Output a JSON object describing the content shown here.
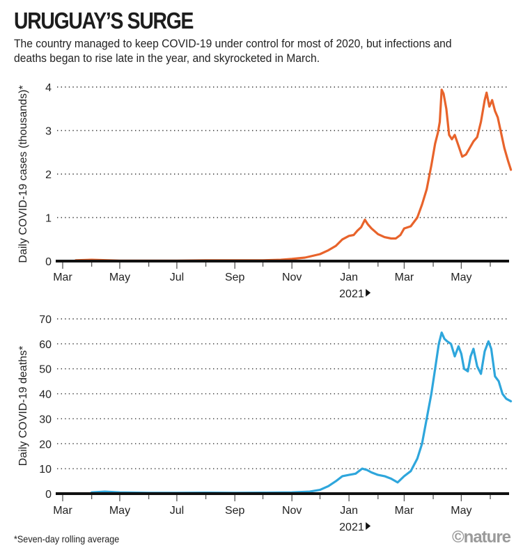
{
  "title": "URUGUAY’S SURGE",
  "subtitle": "The country managed to keep COVID-19 under control for most of 2020, but infections and deaths began to rise late in the year, and skyrocketed in March.",
  "footnote": "*Seven-day rolling average",
  "credit": "©nature",
  "colors": {
    "cases": "#e8632b",
    "deaths": "#2ea6dc",
    "axis": "#111111",
    "grid": "#333333"
  },
  "chart_data": [
    {
      "type": "line",
      "title": "Daily COVID-19 cases",
      "xlabel": "",
      "ylabel": "Daily COVID-19 cases (thousands)*",
      "ylim": [
        0,
        4
      ],
      "yticks": [
        "0",
        "1",
        "2",
        "3",
        "4"
      ],
      "xticks": [
        "Mar",
        "May",
        "Jul",
        "Sep",
        "Nov",
        "Jan",
        "Mar",
        "May"
      ],
      "year_marker": "2021",
      "grid": true,
      "series": [
        {
          "name": "Cases",
          "x": [
            "2020-03-15",
            "2020-04-01",
            "2020-05-01",
            "2020-06-01",
            "2020-07-01",
            "2020-08-01",
            "2020-09-01",
            "2020-10-01",
            "2020-10-20",
            "2020-11-01",
            "2020-11-15",
            "2020-12-01",
            "2020-12-10",
            "2020-12-18",
            "2020-12-25",
            "2021-01-01",
            "2021-01-06",
            "2021-01-10",
            "2021-01-14",
            "2021-01-18",
            "2021-01-21",
            "2021-01-25",
            "2021-02-01",
            "2021-02-08",
            "2021-02-15",
            "2021-02-20",
            "2021-02-25",
            "2021-03-01",
            "2021-03-08",
            "2021-03-15",
            "2021-03-20",
            "2021-03-25",
            "2021-03-30",
            "2021-04-03",
            "2021-04-06",
            "2021-04-08",
            "2021-04-10",
            "2021-04-12",
            "2021-04-15",
            "2021-04-18",
            "2021-04-21",
            "2021-04-24",
            "2021-04-28",
            "2021-05-02",
            "2021-05-06",
            "2021-05-10",
            "2021-05-14",
            "2021-05-18",
            "2021-05-22",
            "2021-05-26",
            "2021-05-28",
            "2021-05-31",
            "2021-06-03",
            "2021-06-06",
            "2021-06-09",
            "2021-06-12",
            "2021-06-16",
            "2021-06-20",
            "2021-06-23"
          ],
          "values": [
            0.02,
            0.03,
            0.01,
            0.01,
            0.01,
            0.02,
            0.02,
            0.02,
            0.03,
            0.05,
            0.08,
            0.16,
            0.25,
            0.35,
            0.5,
            0.58,
            0.6,
            0.7,
            0.78,
            0.95,
            0.85,
            0.75,
            0.62,
            0.55,
            0.52,
            0.52,
            0.6,
            0.75,
            0.8,
            1.0,
            1.3,
            1.65,
            2.2,
            2.7,
            2.95,
            3.2,
            3.94,
            3.85,
            3.5,
            2.9,
            2.8,
            2.9,
            2.65,
            2.4,
            2.45,
            2.6,
            2.75,
            2.85,
            3.2,
            3.7,
            3.87,
            3.55,
            3.7,
            3.45,
            3.3,
            3.0,
            2.6,
            2.3,
            2.1
          ]
        }
      ]
    },
    {
      "type": "line",
      "title": "Daily COVID-19 deaths",
      "xlabel": "",
      "ylabel": "Daily COVID-19 deaths*",
      "ylim": [
        0,
        70
      ],
      "yticks": [
        "0",
        "10",
        "20",
        "30",
        "40",
        "50",
        "60",
        "70"
      ],
      "xticks": [
        "Mar",
        "May",
        "Jul",
        "Sep",
        "Nov",
        "Jan",
        "Mar",
        "May"
      ],
      "year_marker": "2021",
      "grid": true,
      "series": [
        {
          "name": "Deaths",
          "x": [
            "2020-04-01",
            "2020-04-15",
            "2020-05-01",
            "2020-06-01",
            "2020-07-01",
            "2020-08-01",
            "2020-09-01",
            "2020-10-01",
            "2020-11-01",
            "2020-11-20",
            "2020-12-01",
            "2020-12-10",
            "2020-12-18",
            "2020-12-25",
            "2021-01-01",
            "2021-01-08",
            "2021-01-15",
            "2021-01-20",
            "2021-01-25",
            "2021-02-01",
            "2021-02-08",
            "2021-02-15",
            "2021-02-22",
            "2021-03-01",
            "2021-03-08",
            "2021-03-15",
            "2021-03-20",
            "2021-03-25",
            "2021-03-30",
            "2021-04-03",
            "2021-04-07",
            "2021-04-10",
            "2021-04-13",
            "2021-04-16",
            "2021-04-20",
            "2021-04-24",
            "2021-04-28",
            "2021-05-01",
            "2021-05-04",
            "2021-05-08",
            "2021-05-11",
            "2021-05-14",
            "2021-05-18",
            "2021-05-22",
            "2021-05-26",
            "2021-05-30",
            "2021-06-02",
            "2021-06-06",
            "2021-06-10",
            "2021-06-14",
            "2021-06-18",
            "2021-06-23"
          ],
          "values": [
            0.5,
            0.8,
            0.5,
            0.3,
            0.3,
            0.4,
            0.3,
            0.4,
            0.5,
            0.8,
            1.5,
            3,
            5,
            7,
            7.5,
            8,
            10,
            9.5,
            8.5,
            7.5,
            7,
            6,
            4.5,
            7,
            9,
            14,
            20,
            30,
            40,
            50,
            60,
            64.5,
            62,
            61,
            60,
            55,
            59,
            56,
            50,
            49,
            55,
            58,
            51,
            48,
            57,
            61,
            58,
            47,
            45,
            40,
            38,
            37
          ]
        }
      ]
    }
  ]
}
